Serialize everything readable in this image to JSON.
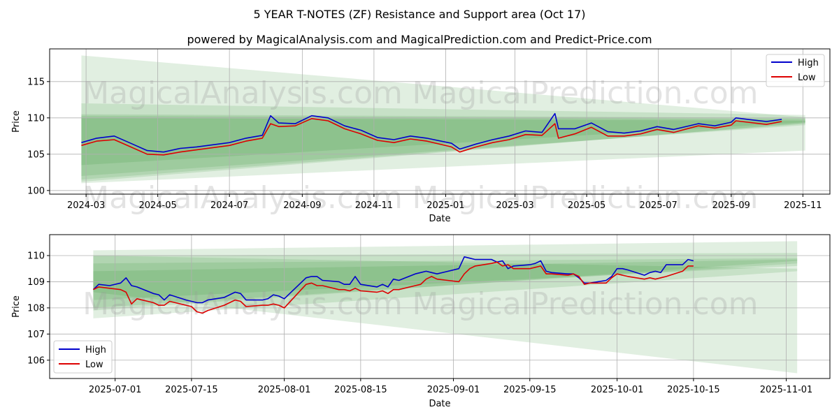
{
  "title": "5 YEAR T-NOTES (ZF) Resistance and Support area (Oct 17)",
  "subtitle": "powered by MagicalAnalysis.com and MagicalPrediction.com and Predict-Price.com",
  "watermarks": [
    "MagicalAnalysis.com",
    "MagicalPrediction.com"
  ],
  "colors": {
    "high": "#0000cc",
    "low": "#dd0000",
    "band": "#2e8b2e",
    "grid": "#b0b0b0"
  },
  "chart_data": [
    {
      "type": "line",
      "xlabel": "Date",
      "ylabel": "Price",
      "legend_position": "upper right",
      "grid": true,
      "x_ticks": [
        "2024-03",
        "2024-05",
        "2024-07",
        "2024-09",
        "2024-11",
        "2025-01",
        "2025-03",
        "2025-05",
        "2025-07",
        "2025-09",
        "2025-11"
      ],
      "y_ticks": [
        100,
        105,
        110,
        115
      ],
      "ylim": [
        99.5,
        119.5
      ],
      "series": [
        {
          "name": "High",
          "x": [
            "2024-02-26",
            "2024-03-10",
            "2024-03-25",
            "2024-04-08",
            "2024-04-22",
            "2024-05-06",
            "2024-05-20",
            "2024-06-03",
            "2024-06-17",
            "2024-07-01",
            "2024-07-15",
            "2024-07-29",
            "2024-08-05",
            "2024-08-12",
            "2024-08-26",
            "2024-09-09",
            "2024-09-23",
            "2024-10-07",
            "2024-10-21",
            "2024-11-04",
            "2024-11-18",
            "2024-12-02",
            "2024-12-16",
            "2025-01-06",
            "2025-01-13",
            "2025-01-27",
            "2025-02-10",
            "2025-02-24",
            "2025-03-10",
            "2025-03-24",
            "2025-04-04",
            "2025-04-07",
            "2025-04-21",
            "2025-05-05",
            "2025-05-19",
            "2025-06-02",
            "2025-06-16",
            "2025-06-30",
            "2025-07-14",
            "2025-08-04",
            "2025-08-18",
            "2025-09-01",
            "2025-09-05",
            "2025-09-15",
            "2025-10-01",
            "2025-10-14"
          ],
          "values": [
            106.6,
            107.2,
            107.5,
            106.5,
            105.5,
            105.3,
            105.8,
            106.0,
            106.3,
            106.6,
            107.2,
            107.6,
            110.3,
            109.3,
            109.2,
            110.3,
            110.0,
            108.9,
            108.3,
            107.3,
            107.0,
            107.5,
            107.2,
            106.5,
            105.7,
            106.4,
            107.0,
            107.5,
            108.2,
            108.0,
            110.6,
            108.5,
            108.5,
            109.3,
            108.1,
            107.9,
            108.2,
            108.8,
            108.4,
            109.2,
            108.9,
            109.4,
            110.0,
            109.8,
            109.5,
            109.8
          ]
        },
        {
          "name": "Low",
          "x": [
            "2024-02-26",
            "2024-03-10",
            "2024-03-25",
            "2024-04-08",
            "2024-04-22",
            "2024-05-06",
            "2024-05-20",
            "2024-06-03",
            "2024-06-17",
            "2024-07-01",
            "2024-07-15",
            "2024-07-29",
            "2024-08-05",
            "2024-08-12",
            "2024-08-26",
            "2024-09-09",
            "2024-09-23",
            "2024-10-07",
            "2024-10-21",
            "2024-11-04",
            "2024-11-18",
            "2024-12-02",
            "2024-12-16",
            "2025-01-06",
            "2025-01-13",
            "2025-01-27",
            "2025-02-10",
            "2025-02-24",
            "2025-03-10",
            "2025-03-24",
            "2025-04-04",
            "2025-04-07",
            "2025-04-21",
            "2025-05-05",
            "2025-05-19",
            "2025-06-02",
            "2025-06-16",
            "2025-06-30",
            "2025-07-14",
            "2025-08-04",
            "2025-08-18",
            "2025-09-01",
            "2025-09-05",
            "2025-09-15",
            "2025-10-01",
            "2025-10-14"
          ],
          "values": [
            106.2,
            106.8,
            107.0,
            106.0,
            105.0,
            104.9,
            105.3,
            105.6,
            105.9,
            106.2,
            106.8,
            107.2,
            109.2,
            108.8,
            108.9,
            109.9,
            109.6,
            108.5,
            107.8,
            106.9,
            106.6,
            107.1,
            106.8,
            106.0,
            105.3,
            106.0,
            106.6,
            107.0,
            107.7,
            107.6,
            109.2,
            107.2,
            107.8,
            108.7,
            107.5,
            107.5,
            107.8,
            108.4,
            108.0,
            108.9,
            108.6,
            109.0,
            109.6,
            109.4,
            109.1,
            109.5
          ]
        }
      ],
      "bands": [
        {
          "x": [
            "2024-02-26",
            "2025-11-03"
          ],
          "top": [
            118.6,
            110.1
          ],
          "bottom": [
            102.0,
            109.0
          ]
        },
        {
          "x": [
            "2024-02-26",
            "2025-11-03"
          ],
          "top": [
            112.0,
            110.4
          ],
          "bottom": [
            101.0,
            105.5
          ]
        },
        {
          "x": [
            "2024-02-26",
            "2025-11-03"
          ],
          "top": [
            110.5,
            110.0
          ],
          "bottom": [
            101.5,
            109.2
          ]
        },
        {
          "x": [
            "2024-02-26",
            "2025-11-03"
          ],
          "top": [
            110.3,
            109.8
          ],
          "bottom": [
            103.5,
            109.4
          ]
        },
        {
          "x": [
            "2024-02-26",
            "2025-11-03"
          ],
          "top": [
            110.0,
            109.6
          ],
          "bottom": [
            101.2,
            109.3
          ]
        }
      ]
    },
    {
      "type": "line",
      "xlabel": "Date",
      "ylabel": "Price",
      "legend_position": "lower left",
      "grid": true,
      "x_ticks": [
        "2025-07-01",
        "2025-07-15",
        "2025-08-01",
        "2025-08-15",
        "2025-09-01",
        "2025-09-15",
        "2025-10-01",
        "2025-10-15",
        "2025-11-01"
      ],
      "y_ticks": [
        106,
        107,
        108,
        109,
        110
      ],
      "ylim": [
        105.3,
        110.8
      ],
      "series": [
        {
          "name": "High",
          "x": [
            "2025-06-27",
            "2025-06-28",
            "2025-06-30",
            "2025-07-02",
            "2025-07-03",
            "2025-07-04",
            "2025-07-05",
            "2025-07-08",
            "2025-07-09",
            "2025-07-10",
            "2025-07-11",
            "2025-07-14",
            "2025-07-15",
            "2025-07-16",
            "2025-07-17",
            "2025-07-18",
            "2025-07-21",
            "2025-07-22",
            "2025-07-23",
            "2025-07-24",
            "2025-07-25",
            "2025-07-28",
            "2025-07-29",
            "2025-07-30",
            "2025-07-31",
            "2025-08-01",
            "2025-08-05",
            "2025-08-06",
            "2025-08-07",
            "2025-08-08",
            "2025-08-11",
            "2025-08-12",
            "2025-08-13",
            "2025-08-14",
            "2025-08-15",
            "2025-08-18",
            "2025-08-19",
            "2025-08-20",
            "2025-08-21",
            "2025-08-22",
            "2025-08-25",
            "2025-08-26",
            "2025-08-27",
            "2025-08-28",
            "2025-08-29",
            "2025-09-02",
            "2025-09-03",
            "2025-09-04",
            "2025-09-05",
            "2025-09-08",
            "2025-09-09",
            "2025-09-10",
            "2025-09-11",
            "2025-09-12",
            "2025-09-15",
            "2025-09-16",
            "2025-09-17",
            "2025-09-18",
            "2025-09-19",
            "2025-09-22",
            "2025-09-23",
            "2025-09-24",
            "2025-09-25",
            "2025-09-26",
            "2025-09-29",
            "2025-09-30",
            "2025-10-01",
            "2025-10-02",
            "2025-10-03",
            "2025-10-06",
            "2025-10-07",
            "2025-10-08",
            "2025-10-09",
            "2025-10-10",
            "2025-10-13",
            "2025-10-14",
            "2025-10-15"
          ],
          "values": [
            108.7,
            108.9,
            108.85,
            108.95,
            109.15,
            108.85,
            108.8,
            108.55,
            108.5,
            108.3,
            108.5,
            108.3,
            108.25,
            108.2,
            108.2,
            108.3,
            108.4,
            108.5,
            108.6,
            108.55,
            108.3,
            108.3,
            108.35,
            108.5,
            108.45,
            108.35,
            109.15,
            109.2,
            109.2,
            109.05,
            109.0,
            108.9,
            108.9,
            109.2,
            108.9,
            108.8,
            108.9,
            108.8,
            109.1,
            109.05,
            109.3,
            109.35,
            109.4,
            109.35,
            109.3,
            109.5,
            109.95,
            109.9,
            109.85,
            109.85,
            109.75,
            109.8,
            109.5,
            109.6,
            109.65,
            109.7,
            109.8,
            109.4,
            109.35,
            109.3,
            109.3,
            109.15,
            108.95,
            108.95,
            109.05,
            109.2,
            109.5,
            109.5,
            109.45,
            109.25,
            109.35,
            109.4,
            109.35,
            109.65,
            109.65,
            109.85,
            109.8
          ]
        },
        {
          "name": "Low",
          "x": [
            "2025-06-27",
            "2025-06-28",
            "2025-06-30",
            "2025-07-02",
            "2025-07-03",
            "2025-07-04",
            "2025-07-05",
            "2025-07-08",
            "2025-07-09",
            "2025-07-10",
            "2025-07-11",
            "2025-07-14",
            "2025-07-15",
            "2025-07-16",
            "2025-07-17",
            "2025-07-18",
            "2025-07-21",
            "2025-07-22",
            "2025-07-23",
            "2025-07-24",
            "2025-07-25",
            "2025-07-28",
            "2025-07-29",
            "2025-07-30",
            "2025-07-31",
            "2025-08-01",
            "2025-08-05",
            "2025-08-06",
            "2025-08-07",
            "2025-08-08",
            "2025-08-11",
            "2025-08-12",
            "2025-08-13",
            "2025-08-14",
            "2025-08-15",
            "2025-08-18",
            "2025-08-19",
            "2025-08-20",
            "2025-08-21",
            "2025-08-22",
            "2025-08-25",
            "2025-08-26",
            "2025-08-27",
            "2025-08-28",
            "2025-08-29",
            "2025-09-02",
            "2025-09-03",
            "2025-09-04",
            "2025-09-05",
            "2025-09-08",
            "2025-09-09",
            "2025-09-10",
            "2025-09-11",
            "2025-09-12",
            "2025-09-15",
            "2025-09-16",
            "2025-09-17",
            "2025-09-18",
            "2025-09-19",
            "2025-09-22",
            "2025-09-23",
            "2025-09-24",
            "2025-09-25",
            "2025-09-26",
            "2025-09-29",
            "2025-09-30",
            "2025-10-01",
            "2025-10-02",
            "2025-10-03",
            "2025-10-06",
            "2025-10-07",
            "2025-10-08",
            "2025-10-09",
            "2025-10-10",
            "2025-10-13",
            "2025-10-14",
            "2025-10-15"
          ],
          "values": [
            108.7,
            108.8,
            108.75,
            108.7,
            108.6,
            108.15,
            108.35,
            108.2,
            108.1,
            108.1,
            108.25,
            108.1,
            108.05,
            107.85,
            107.8,
            107.9,
            108.1,
            108.2,
            108.3,
            108.25,
            108.05,
            108.1,
            108.1,
            108.15,
            108.1,
            108.0,
            108.9,
            108.95,
            108.85,
            108.85,
            108.7,
            108.7,
            108.65,
            108.75,
            108.65,
            108.6,
            108.65,
            108.55,
            108.7,
            108.7,
            108.85,
            108.9,
            109.1,
            109.2,
            109.1,
            109.0,
            109.3,
            109.5,
            109.6,
            109.7,
            109.75,
            109.6,
            109.65,
            109.5,
            109.5,
            109.55,
            109.6,
            109.3,
            109.3,
            109.25,
            109.3,
            109.2,
            108.9,
            108.95,
            108.95,
            109.15,
            109.3,
            109.25,
            109.2,
            109.1,
            109.15,
            109.1,
            109.15,
            109.2,
            109.4,
            109.6,
            109.6
          ]
        }
      ],
      "bands": [
        {
          "x": [
            "2025-06-27",
            "2025-11-03"
          ],
          "top": [
            110.2,
            110.55
          ],
          "bottom": [
            107.6,
            109.4
          ]
        },
        {
          "x": [
            "2025-06-27",
            "2025-11-03"
          ],
          "top": [
            110.0,
            109.5
          ],
          "bottom": [
            108.6,
            105.5
          ]
        },
        {
          "x": [
            "2025-06-27",
            "2025-11-03"
          ],
          "top": [
            110.0,
            110.1
          ],
          "bottom": [
            107.9,
            109.8
          ]
        },
        {
          "x": [
            "2025-06-27",
            "2025-11-03"
          ],
          "top": [
            109.7,
            109.9
          ],
          "bottom": [
            108.3,
            109.6
          ]
        },
        {
          "x": [
            "2025-06-27",
            "2025-11-03"
          ],
          "top": [
            109.4,
            109.85
          ],
          "bottom": [
            108.0,
            109.7
          ]
        }
      ]
    }
  ]
}
